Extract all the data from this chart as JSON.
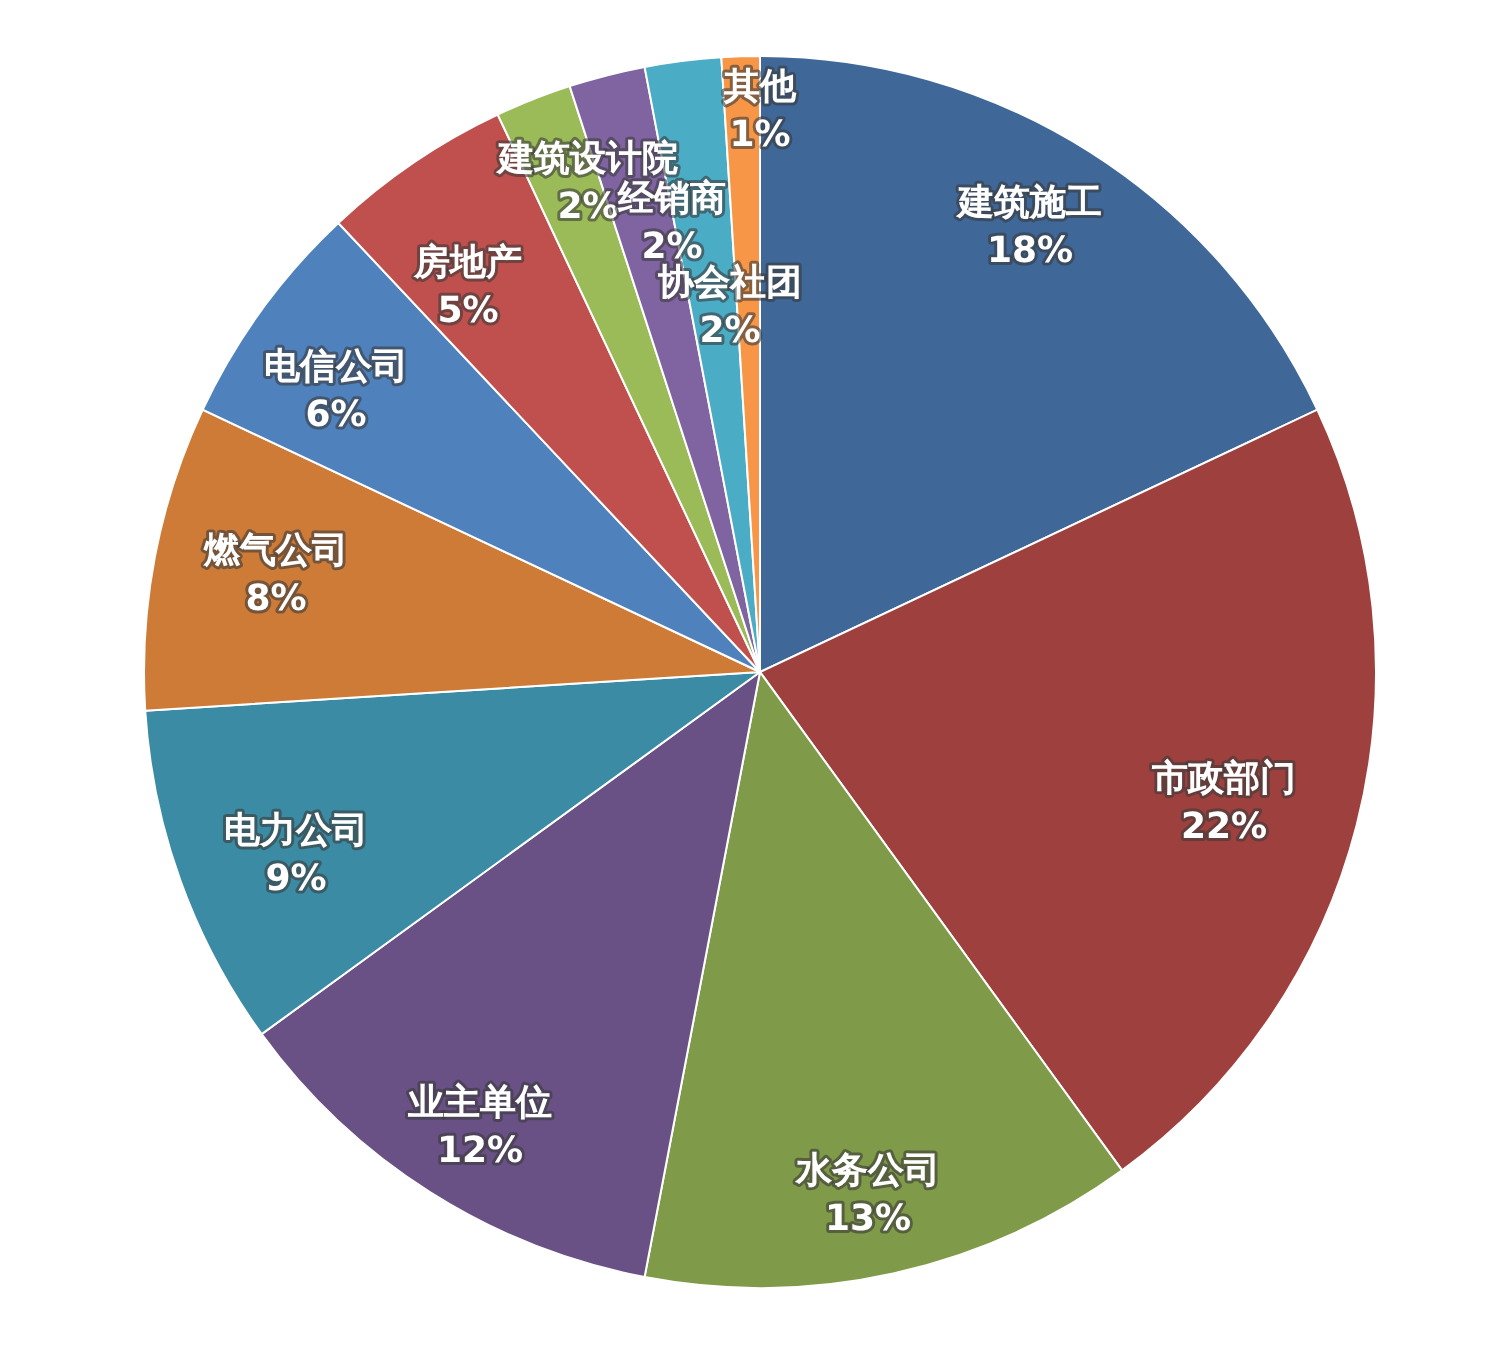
{
  "chart_data": {
    "type": "pie",
    "categories": [
      "建筑施工",
      "市政部门",
      "水务公司",
      "业主单位",
      "电力公司",
      "燃气公司",
      "电信公司",
      "房地产",
      "建筑设计院",
      "经销商",
      "协会社团",
      "其他"
    ],
    "values": [
      18,
      22,
      13,
      12,
      9,
      8,
      6,
      5,
      2,
      2,
      2,
      1
    ],
    "value_labels": [
      "18%",
      "22%",
      "13%",
      "12%",
      "9%",
      "8%",
      "6%",
      "5%",
      "2%",
      "2%",
      "2%",
      "1%"
    ],
    "colors": [
      "#3f6899",
      "#9e413e",
      "#7f9a48",
      "#695185",
      "#3a8ba3",
      "#ce7b37",
      "#4f81bd",
      "#c0504d",
      "#9bbb59",
      "#8064a2",
      "#4bacc6",
      "#f79646"
    ]
  }
}
